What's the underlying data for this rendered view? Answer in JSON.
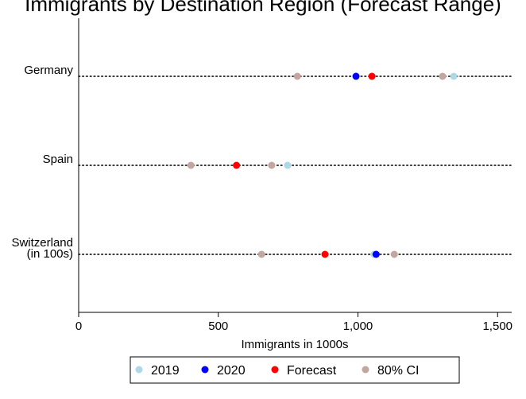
{
  "chart_data": {
    "type": "scatter",
    "title": "Immigrants by Destination Region (Forecast Range)",
    "xlabel": "Immigrants in 1000s",
    "ylabel": "",
    "xlim": [
      0,
      1550
    ],
    "x_ticks": [
      0,
      500,
      1000,
      1500
    ],
    "x_tick_labels": [
      "0",
      "500",
      "1,000",
      "1,500"
    ],
    "grid": false,
    "legend_position": "bottom",
    "categories": [
      {
        "label_lines": [
          "Germany"
        ]
      },
      {
        "label_lines": [
          "Spain"
        ]
      },
      {
        "label_lines": [
          "Switzerland",
          "(in 100s)"
        ]
      }
    ],
    "series": [
      {
        "name": "2019",
        "color": "#add8e6",
        "values": [
          1343,
          748,
          1058
        ]
      },
      {
        "name": "2020",
        "color": "#0000ff",
        "values": [
          993,
          null,
          1065
        ]
      },
      {
        "name": "Forecast",
        "color": "#ff0000",
        "values": [
          1050,
          565,
          882
        ]
      },
      {
        "name": "80% CI",
        "color": "#c4a6a0",
        "values": [
          [
            783,
            1303
          ],
          [
            402,
            691
          ],
          [
            655,
            1130
          ]
        ]
      }
    ]
  }
}
